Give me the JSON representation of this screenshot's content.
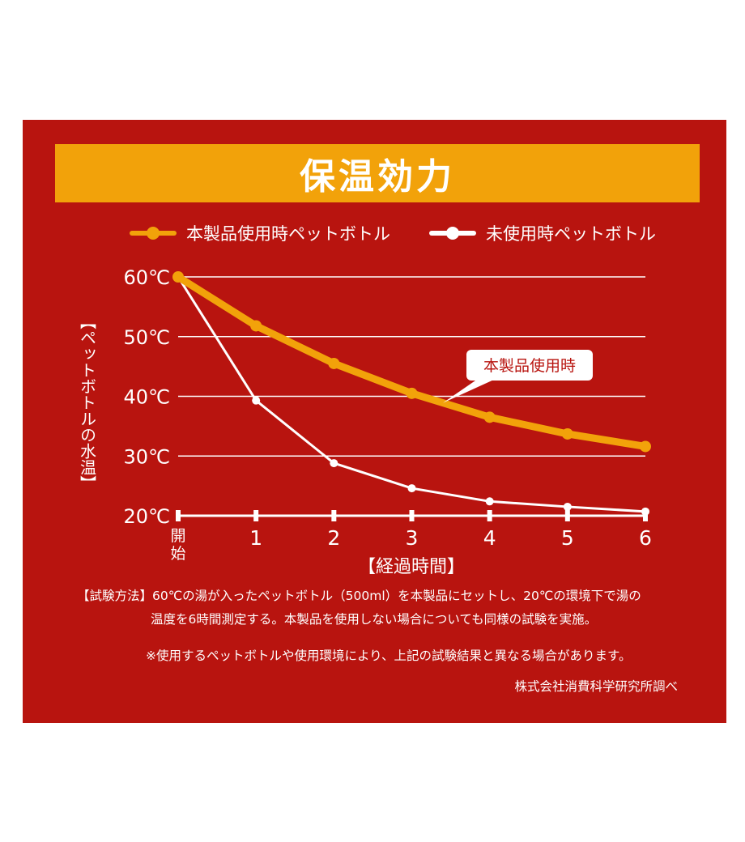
{
  "title": "保温効力",
  "legend": {
    "series_a_label": "本製品使用時ペットボトル",
    "series_b_label": "未使用時ペットボトル"
  },
  "colors": {
    "background": "#b8140f",
    "title_bar": "#f2a20a",
    "series_a": "#f2a20a",
    "series_b": "#ffffff"
  },
  "notes": {
    "method_line1": "【試験方法】60℃の湯が入ったペットボトル（500ml）を本製品にセットし、20℃の環境下で湯の",
    "method_line2": "温度を6時間測定する。本製品を使用しない場合についても同様の試験を実施。",
    "disclaimer": "※使用するペットボトルや使用環境により、上記の試験結果と異なる場合があります。",
    "source": "株式会社消費科学研究所調べ"
  },
  "chart_data": {
    "type": "line",
    "xlabel": "【経過時間】",
    "ylabel": "【ペットボトルの水温】",
    "x_tick_labels": [
      "開始",
      "1",
      "2",
      "3",
      "4",
      "5",
      "6"
    ],
    "x": [
      0,
      1,
      2,
      3,
      4,
      5,
      6
    ],
    "y_tick_labels": [
      "20℃",
      "30℃",
      "40℃",
      "50℃",
      "60℃"
    ],
    "y_ticks": [
      20,
      30,
      40,
      50,
      60
    ],
    "ylim": [
      20,
      60
    ],
    "grid": true,
    "legend_position": "top",
    "series": [
      {
        "name": "本製品使用時ペットボトル",
        "color": "#f2a20a",
        "values": [
          60,
          51.8,
          45.5,
          40.5,
          36.5,
          33.7,
          31.6
        ]
      },
      {
        "name": "未使用時ペットボトル",
        "color": "#ffffff",
        "values": [
          60,
          39.3,
          28.8,
          24.6,
          22.4,
          21.5,
          20.7
        ]
      }
    ],
    "annotation": {
      "text": "本製品使用時",
      "series": 0,
      "x": 3.4
    }
  }
}
